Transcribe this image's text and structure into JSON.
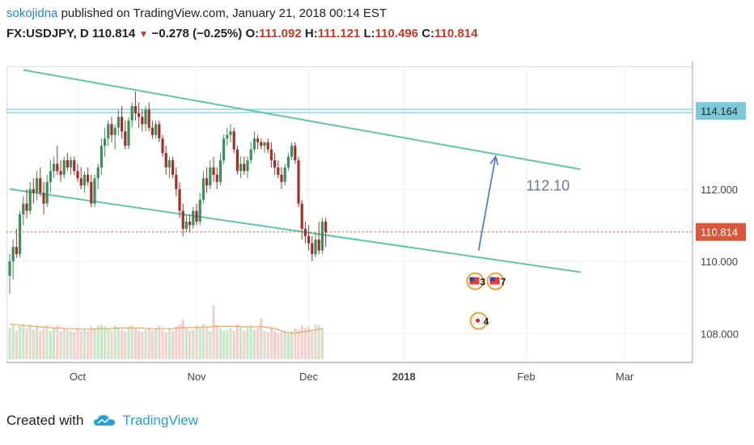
{
  "header": {
    "author": "sokojidna",
    "published": "published on TradingView.com, January 21, 2018 00:14 EST",
    "symbol": "FX:USDJPY, D",
    "last": "110.814",
    "change": "−0.278 (−0.25%)",
    "o_label": "O:",
    "o": "111.092",
    "h_label": "H:",
    "h": "111.121",
    "l_label": "L:",
    "l": "110.496",
    "c_label": "C:",
    "c": "110.814"
  },
  "footer": {
    "created": "Created with",
    "brand": "TradingView"
  },
  "colors": {
    "up": "#3a8f5a",
    "down": "#a0302a",
    "channel": "#5fc5a8",
    "hline": "#8fd4e6",
    "arrow": "#5b7cc9",
    "volUp": "#c9e6c9",
    "volDown": "#f4cfcf",
    "ma": "#f4a460"
  },
  "chart_data": {
    "type": "candlestick",
    "x_tick_labels": [
      "Oct",
      "Nov",
      "Dec",
      "2018",
      "Feb",
      "Mar"
    ],
    "y_tick_labels": [
      "114.164",
      "112.000",
      "110.814",
      "110.000",
      "108.000"
    ],
    "price_labels": {
      "horizontal_level": "114.164",
      "last_price": "110.814"
    },
    "annotation": "112.10",
    "event_badges": [
      "3",
      "7",
      "4"
    ],
    "ylim": [
      107.2,
      115.4
    ],
    "candles": [
      [
        109.6,
        110.2,
        109.1,
        110.0
      ],
      [
        110.0,
        110.6,
        109.5,
        110.4
      ],
      [
        110.4,
        110.9,
        110.1,
        110.2
      ],
      [
        110.2,
        111.4,
        110.1,
        111.3
      ],
      [
        111.3,
        111.8,
        111.0,
        111.6
      ],
      [
        111.6,
        112.0,
        111.2,
        111.4
      ],
      [
        111.4,
        112.2,
        111.3,
        112.0
      ],
      [
        112.0,
        112.3,
        111.6,
        111.9
      ],
      [
        111.9,
        112.5,
        111.7,
        112.3
      ],
      [
        112.3,
        112.6,
        111.8,
        111.9
      ],
      [
        111.9,
        112.2,
        111.3,
        111.6
      ],
      [
        111.6,
        112.4,
        111.5,
        112.2
      ],
      [
        112.2,
        112.8,
        111.9,
        112.5
      ],
      [
        112.5,
        112.9,
        112.3,
        112.7
      ],
      [
        112.7,
        113.2,
        112.4,
        112.5
      ],
      [
        112.5,
        112.8,
        112.2,
        112.4
      ],
      [
        112.4,
        112.9,
        112.3,
        112.8
      ],
      [
        112.8,
        113.0,
        112.5,
        112.6
      ],
      [
        112.6,
        112.9,
        112.4,
        112.8
      ],
      [
        112.8,
        112.9,
        112.4,
        112.5
      ],
      [
        112.5,
        112.7,
        112.2,
        112.3
      ],
      [
        112.3,
        112.6,
        112.0,
        112.1
      ],
      [
        112.1,
        112.5,
        111.9,
        112.4
      ],
      [
        112.4,
        112.6,
        112.1,
        112.2
      ],
      [
        112.2,
        112.4,
        111.5,
        111.6
      ],
      [
        111.6,
        112.4,
        111.5,
        112.3
      ],
      [
        112.3,
        112.7,
        112.0,
        112.6
      ],
      [
        112.6,
        113.4,
        112.4,
        113.2
      ],
      [
        113.2,
        113.7,
        112.9,
        113.4
      ],
      [
        113.4,
        113.9,
        113.2,
        113.8
      ],
      [
        113.8,
        114.0,
        113.3,
        113.5
      ],
      [
        113.5,
        113.8,
        113.1,
        113.7
      ],
      [
        113.7,
        114.2,
        113.5,
        114.0
      ],
      [
        114.0,
        114.3,
        113.4,
        113.6
      ],
      [
        113.6,
        113.9,
        113.1,
        113.2
      ],
      [
        113.2,
        114.0,
        113.1,
        113.9
      ],
      [
        113.9,
        114.4,
        113.7,
        114.3
      ],
      [
        114.3,
        114.7,
        113.9,
        114.1
      ],
      [
        114.1,
        114.4,
        113.7,
        114.0
      ],
      [
        114.0,
        114.2,
        113.6,
        113.8
      ],
      [
        113.8,
        114.3,
        113.6,
        114.2
      ],
      [
        114.2,
        114.4,
        113.6,
        113.7
      ],
      [
        113.7,
        113.9,
        113.4,
        113.5
      ],
      [
        113.5,
        113.9,
        113.4,
        113.8
      ],
      [
        113.8,
        113.9,
        113.3,
        113.4
      ],
      [
        113.4,
        113.5,
        112.9,
        113.0
      ],
      [
        113.0,
        113.2,
        112.4,
        112.6
      ],
      [
        112.6,
        112.9,
        112.3,
        112.8
      ],
      [
        112.8,
        112.9,
        112.3,
        112.4
      ],
      [
        112.4,
        112.6,
        111.8,
        112.0
      ],
      [
        112.0,
        112.2,
        111.2,
        111.4
      ],
      [
        111.4,
        111.6,
        110.7,
        110.9
      ],
      [
        110.9,
        111.3,
        110.8,
        111.1
      ],
      [
        111.1,
        111.3,
        110.8,
        111.0
      ],
      [
        111.0,
        111.5,
        110.9,
        111.4
      ],
      [
        111.4,
        111.6,
        111.0,
        111.1
      ],
      [
        111.1,
        111.9,
        111.0,
        111.7
      ],
      [
        111.7,
        112.5,
        111.6,
        112.3
      ],
      [
        112.3,
        112.6,
        111.9,
        112.1
      ],
      [
        112.1,
        112.8,
        112.0,
        112.6
      ],
      [
        112.6,
        112.9,
        112.2,
        112.4
      ],
      [
        112.4,
        112.6,
        112.0,
        112.2
      ],
      [
        112.2,
        113.0,
        112.1,
        112.8
      ],
      [
        112.8,
        113.5,
        112.7,
        113.4
      ],
      [
        113.4,
        113.7,
        113.2,
        113.5
      ],
      [
        113.5,
        113.8,
        113.3,
        113.6
      ],
      [
        113.6,
        113.7,
        113.0,
        113.1
      ],
      [
        113.1,
        113.2,
        112.4,
        112.5
      ],
      [
        112.5,
        112.9,
        112.3,
        112.7
      ],
      [
        112.7,
        112.9,
        112.4,
        112.5
      ],
      [
        112.5,
        112.9,
        112.3,
        112.8
      ],
      [
        112.8,
        113.3,
        112.7,
        113.1
      ],
      [
        113.1,
        113.6,
        113.0,
        113.4
      ],
      [
        113.4,
        113.5,
        113.1,
        113.3
      ],
      [
        113.3,
        113.4,
        113.1,
        113.2
      ],
      [
        113.2,
        113.3,
        113.0,
        113.3
      ],
      [
        113.3,
        113.4,
        113.0,
        113.1
      ],
      [
        113.1,
        113.3,
        112.6,
        112.8
      ],
      [
        112.8,
        113.0,
        112.4,
        112.6
      ],
      [
        112.6,
        112.8,
        112.3,
        112.4
      ],
      [
        112.4,
        112.6,
        112.0,
        112.2
      ],
      [
        112.2,
        112.7,
        112.1,
        112.6
      ],
      [
        112.6,
        113.0,
        112.5,
        112.9
      ],
      [
        112.9,
        113.3,
        112.8,
        113.2
      ],
      [
        113.2,
        113.3,
        112.7,
        112.8
      ],
      [
        112.8,
        112.9,
        111.5,
        111.6
      ],
      [
        111.6,
        111.7,
        110.6,
        110.9
      ],
      [
        110.9,
        111.1,
        110.5,
        110.7
      ],
      [
        110.7,
        111.0,
        110.3,
        110.5
      ],
      [
        110.5,
        110.7,
        110.0,
        110.2
      ],
      [
        110.2,
        110.8,
        110.1,
        110.6
      ],
      [
        110.6,
        111.1,
        110.2,
        110.3
      ],
      [
        110.3,
        111.2,
        110.2,
        111.1
      ],
      [
        111.1,
        111.2,
        110.4,
        110.8
      ]
    ],
    "volume": [
      0.55,
      0.6,
      0.5,
      0.58,
      0.62,
      0.55,
      0.6,
      0.52,
      0.58,
      0.5,
      0.55,
      0.6,
      0.5,
      0.56,
      0.6,
      0.5,
      0.55,
      0.52,
      0.5,
      0.48,
      0.55,
      0.5,
      0.52,
      0.5,
      0.58,
      0.55,
      0.6,
      0.62,
      0.58,
      0.55,
      0.5,
      0.6,
      0.56,
      0.52,
      0.5,
      0.58,
      0.6,
      0.55,
      0.5,
      0.48,
      0.52,
      0.56,
      0.5,
      0.55,
      0.6,
      0.52,
      0.48,
      0.55,
      0.5,
      0.58,
      0.62,
      0.7,
      0.55,
      0.5,
      0.52,
      0.6,
      0.58,
      0.62,
      0.55,
      0.5,
      0.95,
      0.6,
      0.55,
      0.5,
      0.52,
      0.55,
      0.5,
      0.62,
      0.58,
      0.5,
      0.55,
      0.6,
      0.52,
      0.55,
      0.72,
      0.5,
      0.48,
      0.55,
      0.5,
      0.45,
      0.48,
      0.5,
      0.45,
      0.5,
      0.55,
      0.52,
      0.6,
      0.55,
      0.58,
      0.5,
      0.62,
      0.6,
      0.55
    ],
    "volume_ma": [
      0.62,
      0.62,
      0.61,
      0.6,
      0.6,
      0.59,
      0.59,
      0.58,
      0.58,
      0.57,
      0.57,
      0.56,
      0.56,
      0.55,
      0.55,
      0.55,
      0.54,
      0.54,
      0.54,
      0.54,
      0.53,
      0.53,
      0.53,
      0.53,
      0.53,
      0.53,
      0.54,
      0.54,
      0.54,
      0.54,
      0.54,
      0.55,
      0.55,
      0.55,
      0.55,
      0.55,
      0.55,
      0.55,
      0.55,
      0.55,
      0.54,
      0.54,
      0.54,
      0.54,
      0.54,
      0.54,
      0.54,
      0.54,
      0.54,
      0.55,
      0.55,
      0.56,
      0.56,
      0.56,
      0.56,
      0.56,
      0.56,
      0.57,
      0.57,
      0.57,
      0.58,
      0.58,
      0.58,
      0.58,
      0.58,
      0.58,
      0.58,
      0.58,
      0.58,
      0.57,
      0.57,
      0.57,
      0.57,
      0.57,
      0.58,
      0.57,
      0.56,
      0.55,
      0.54,
      0.52,
      0.5,
      0.48,
      0.47,
      0.46,
      0.46,
      0.47,
      0.48,
      0.49,
      0.5,
      0.51,
      0.52,
      0.53,
      0.54
    ],
    "channel_upper": {
      "from": [
        4,
        115.3
      ],
      "to": [
        168,
        112.55
      ]
    },
    "channel_lower": {
      "from": [
        0,
        112.0
      ],
      "to": [
        168,
        109.7
      ]
    },
    "horizontal_line": 114.164,
    "last_price": 110.814,
    "arrow": {
      "from": [
        138,
        110.3
      ],
      "to": [
        143,
        112.9
      ]
    }
  }
}
